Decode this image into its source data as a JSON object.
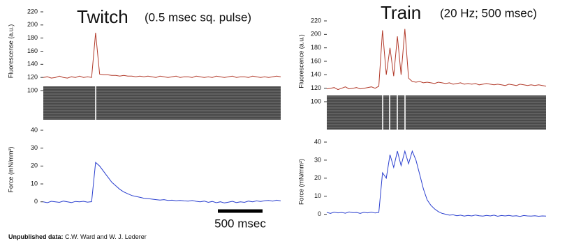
{
  "chart_data": [
    {
      "type": "line",
      "title": "Twitch",
      "subtitle": "(0.5 msec sq. pulse)",
      "ylabel": "Fluorescense (a.u.)",
      "ylim": [
        100,
        220
      ],
      "yticks": [
        100,
        120,
        140,
        160,
        180,
        200,
        220
      ],
      "series": [
        {
          "color": "#b23a2a",
          "values": [
            120,
            121,
            119,
            120,
            122,
            120,
            119,
            121,
            120,
            122,
            120,
            121,
            120,
            188,
            125,
            124,
            124,
            123,
            123,
            122,
            123,
            122,
            122,
            121,
            122,
            121,
            122,
            121,
            120,
            122,
            121,
            120,
            121,
            122,
            120,
            121,
            121,
            120,
            122,
            121,
            120,
            121,
            120,
            122,
            121,
            120,
            121,
            122,
            120,
            121,
            121,
            120,
            122,
            121,
            120,
            121,
            120,
            121,
            122,
            121
          ]
        }
      ]
    },
    {
      "type": "line",
      "ylabel": "Force (mN/mm²)",
      "ylim": [
        -4,
        40
      ],
      "yticks": [
        0,
        10,
        20,
        30,
        40
      ],
      "series": [
        {
          "color": "#2a3fcf",
          "values": [
            0,
            -0.5,
            0.3,
            0,
            -0.3,
            0.4,
            0,
            -0.4,
            0.2,
            0,
            0.3,
            -0.2,
            0.1,
            22,
            20,
            17,
            14,
            11,
            9,
            7,
            5.5,
            4.5,
            3.5,
            3,
            2.5,
            2,
            1.8,
            1.5,
            1.2,
            1,
            1.2,
            0.8,
            0.9,
            0.6,
            0.8,
            0.5,
            0.4,
            0.7,
            0.3,
            0,
            0.4,
            -0.3,
            0.2,
            -0.5,
            0,
            -0.6,
            -0.2,
            0.3,
            -0.4,
            0,
            -0.3,
            0.4,
            0,
            0.5,
            0.2,
            0.6,
            0.8,
            0.4,
            0.9,
            0.5
          ]
        }
      ]
    },
    {
      "type": "line",
      "title": "Train",
      "subtitle": "(20 Hz; 500 msec)",
      "ylabel": "Fluorescence (a.u.)",
      "ylim": [
        100,
        220
      ],
      "yticks": [
        100,
        120,
        140,
        160,
        180,
        200,
        220
      ],
      "series": [
        {
          "color": "#b23a2a",
          "values": [
            119,
            120,
            121,
            118,
            120,
            122,
            119,
            120,
            121,
            119,
            120,
            121,
            122,
            120,
            123,
            206,
            140,
            180,
            138,
            197,
            140,
            208,
            135,
            130,
            129,
            130,
            128,
            129,
            128,
            127,
            129,
            128,
            127,
            128,
            126,
            127,
            128,
            126,
            127,
            126,
            127,
            125,
            126,
            127,
            126,
            125,
            126,
            125,
            124,
            126,
            125,
            124,
            126,
            125,
            124,
            125,
            124,
            125,
            124,
            123
          ]
        }
      ]
    },
    {
      "type": "line",
      "ylabel": "Force (mN/mm²)",
      "ylim": [
        -4,
        40
      ],
      "yticks": [
        0,
        10,
        20,
        30,
        40
      ],
      "series": [
        {
          "color": "#2a3fcf",
          "values": [
            1,
            0.5,
            1.2,
            0.8,
            1,
            0.6,
            1.3,
            0.9,
            1,
            0.5,
            1.1,
            0.8,
            1.2,
            0.7,
            1,
            23,
            20,
            33,
            26,
            35,
            27,
            35,
            28,
            35,
            30,
            22,
            14,
            8,
            5,
            3,
            1.5,
            0.5,
            0,
            -0.5,
            -0.3,
            -0.8,
            -0.5,
            -1,
            -0.6,
            -0.9,
            -0.4,
            -0.8,
            -1,
            -0.6,
            -0.9,
            -0.5,
            -1.1,
            -0.7,
            -0.9,
            -0.6,
            -1,
            -0.8,
            -1.2,
            -0.7,
            -0.9,
            -1,
            -0.8,
            -1.1,
            -0.9,
            -1
          ]
        }
      ]
    }
  ],
  "scale_bar": "500 msec",
  "footnote": {
    "label": "Unpublished data:",
    "text": "C.W. Ward and W. J. Lederer"
  }
}
